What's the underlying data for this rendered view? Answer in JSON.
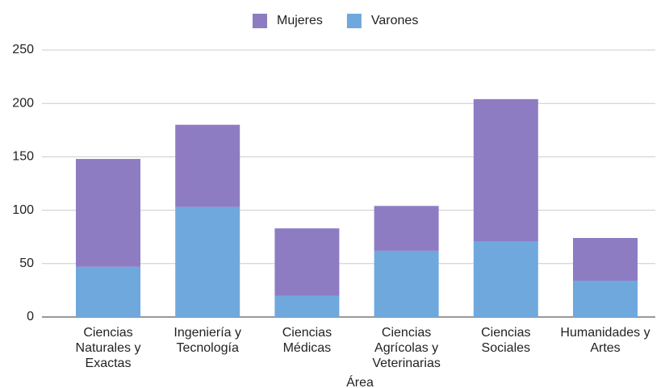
{
  "chart_data": {
    "type": "stacked_bar",
    "categories": [
      "Ciencias Naturales y Exactas",
      "Ingeniería y Tecnología",
      "Ciencias Médicas",
      "Ciencias Agrícolas y Veterinarias",
      "Ciencias Sociales",
      "Humanidades y Artes"
    ],
    "series": [
      {
        "name": "Varones",
        "color": "#6fa8dc",
        "values": [
          47,
          103,
          20,
          62,
          71,
          34
        ]
      },
      {
        "name": "Mujeres",
        "color": "#8e7cc3",
        "values": [
          101,
          77,
          63,
          42,
          133,
          40
        ]
      }
    ],
    "legend_order": [
      "Mujeres",
      "Varones"
    ],
    "x_label": "Área",
    "ylim": [
      0,
      250
    ],
    "yticks": [
      0,
      50,
      100,
      150,
      200,
      250
    ],
    "grid": true,
    "legend": "top"
  }
}
